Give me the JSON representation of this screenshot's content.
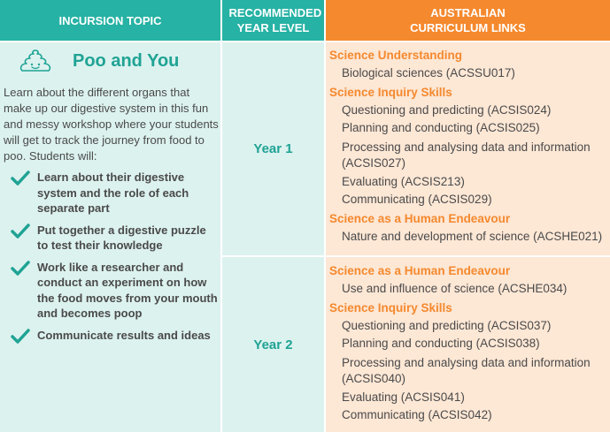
{
  "header": {
    "topic": "INCURSION TOPIC",
    "year": "RECOMMENDED YEAR LEVEL",
    "links": "AUSTRALIAN CURRICULUM LINKS"
  },
  "topic": {
    "icon": "poo-icon",
    "title": "Poo and You",
    "intro": "Learn about the different organs that make up our digestive system in this fun and messy workshop where your students will get to track the journey from food to poo. Students will:",
    "bullets": [
      "Learn about their digestive system and the role of each separate part",
      "Put together a digestive puzzle to test their knowledge",
      "Work like a researcher and conduct an experiment on how the food moves from your mouth and becomes poop",
      "Communicate results and ideas"
    ]
  },
  "rows": [
    {
      "year": "Year 1",
      "sections": [
        {
          "title": "Science Understanding",
          "items": [
            "Biological sciences (ACSSU017)"
          ]
        },
        {
          "title": "Science Inquiry Skills",
          "items": [
            "Questioning and predicting (ACSIS024)",
            "Planning and conducting (ACSIS025)",
            "Processing and analysing data and information (ACSIS027)",
            "Evaluating (ACSIS213)",
            "Communicating (ACSIS029)"
          ]
        },
        {
          "title": "Science as a Human Endeavour",
          "items": [
            "Nature and development of science (ACSHE021)"
          ]
        }
      ]
    },
    {
      "year": "Year 2",
      "sections": [
        {
          "title": "Science as a Human Endeavour",
          "items": [
            "Use and influence of science (ACSHE034)"
          ]
        },
        {
          "title": "Science Inquiry Skills",
          "items": [
            "Questioning and predicting (ACSIS037)",
            "Planning and conducting (ACSIS038)",
            "Processing and analysing data and information (ACSIS040)",
            "Evaluating (ACSIS041)",
            "Communicating (ACSIS042)"
          ]
        }
      ]
    }
  ],
  "colors": {
    "teal": "#26b2a4",
    "teal_text": "#1fa394",
    "orange": "#f5892e",
    "teal_bg": "#dcf2ef",
    "orange_bg": "#fde7d5"
  }
}
